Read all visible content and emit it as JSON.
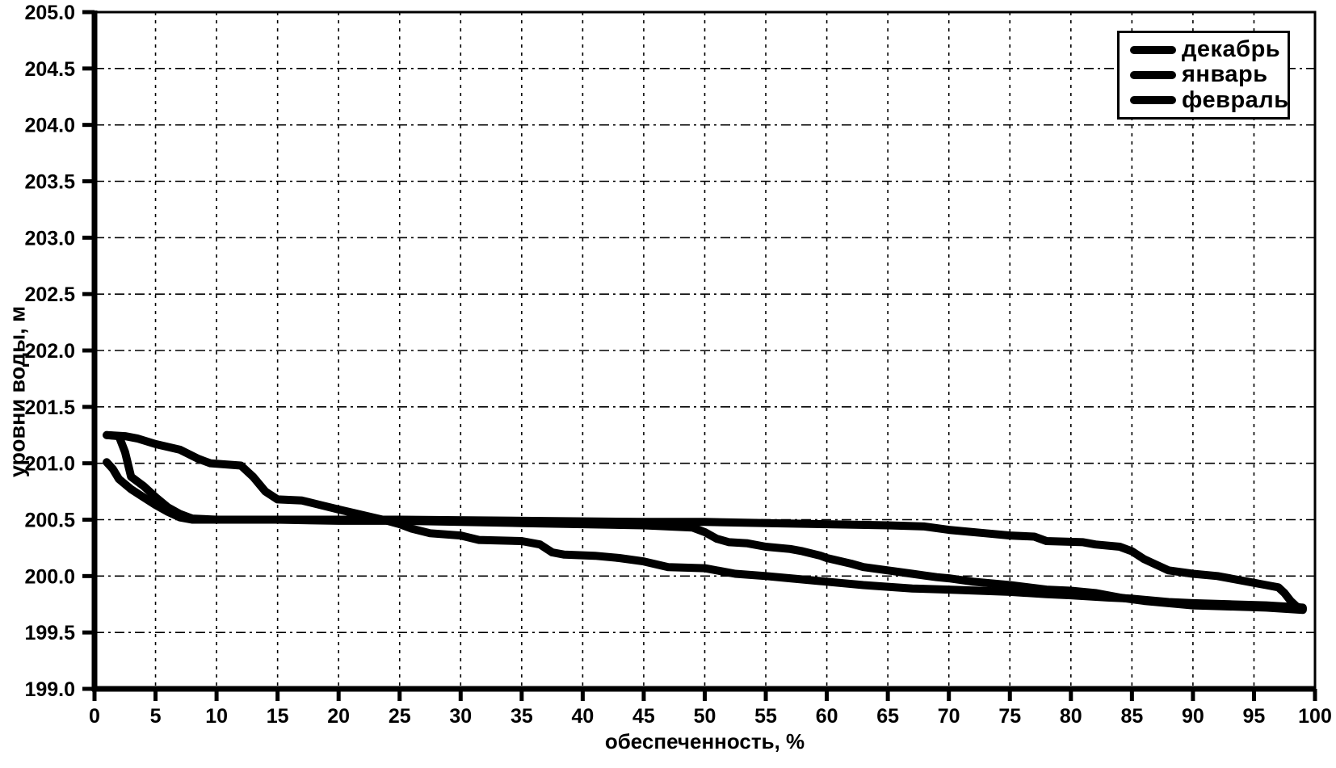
{
  "figure": {
    "background": "#ffffff",
    "ink": "#000000"
  },
  "chart_data": {
    "type": "line",
    "title": "",
    "xlabel": "обеспеченность, %",
    "ylabel": "уровни воды, м",
    "xlim": [
      0,
      100
    ],
    "ylim": [
      199.0,
      205.0
    ],
    "xticks": [
      "0",
      "5",
      "10",
      "15",
      "20",
      "25",
      "30",
      "35",
      "40",
      "45",
      "50",
      "55",
      "60",
      "65",
      "70",
      "75",
      "80",
      "85",
      "90",
      "95",
      "100"
    ],
    "yticks": [
      "199.0",
      "199.5",
      "200.0",
      "200.5",
      "201.0",
      "201.5",
      "202.0",
      "202.5",
      "203.0",
      "203.5",
      "204.0",
      "204.5",
      "205.0"
    ],
    "grid": true,
    "legend_position": "top-right",
    "line_color": "#000000",
    "line_width": 10,
    "series": [
      {
        "name": "декабрь",
        "points": [
          [
            1,
            201.25
          ],
          [
            2.5,
            201.24
          ],
          [
            3.5,
            201.22
          ],
          [
            5,
            201.17
          ],
          [
            7,
            201.12
          ],
          [
            8.5,
            201.04
          ],
          [
            9.5,
            201.0
          ],
          [
            12,
            200.98
          ],
          [
            13,
            200.88
          ],
          [
            14,
            200.75
          ],
          [
            15,
            200.68
          ],
          [
            17,
            200.67
          ],
          [
            18.5,
            200.63
          ],
          [
            20,
            200.59
          ],
          [
            22,
            200.54
          ],
          [
            24,
            200.49
          ],
          [
            25,
            200.46
          ],
          [
            26,
            200.42
          ],
          [
            27.5,
            200.38
          ],
          [
            30,
            200.36
          ],
          [
            31.5,
            200.32
          ],
          [
            35,
            200.31
          ],
          [
            36.5,
            200.28
          ],
          [
            37.5,
            200.21
          ],
          [
            38.5,
            200.19
          ],
          [
            41,
            200.18
          ],
          [
            43,
            200.16
          ],
          [
            45,
            200.13
          ],
          [
            47,
            200.08
          ],
          [
            50,
            200.07
          ],
          [
            52.5,
            200.02
          ],
          [
            55,
            200.0
          ],
          [
            57,
            199.98
          ],
          [
            60,
            199.95
          ],
          [
            63,
            199.92
          ],
          [
            67,
            199.89
          ],
          [
            70,
            199.88
          ],
          [
            75,
            199.86
          ],
          [
            78,
            199.84
          ],
          [
            80,
            199.83
          ],
          [
            83,
            199.81
          ],
          [
            85,
            199.8
          ],
          [
            88,
            199.77
          ],
          [
            90,
            199.76
          ],
          [
            93,
            199.75
          ],
          [
            96,
            199.74
          ],
          [
            99,
            199.72
          ]
        ]
      },
      {
        "name": "январь",
        "points": [
          [
            1,
            201.25
          ],
          [
            2,
            201.24
          ],
          [
            2.5,
            201.1
          ],
          [
            3,
            200.88
          ],
          [
            4,
            200.8
          ],
          [
            5,
            200.7
          ],
          [
            6,
            200.61
          ],
          [
            7,
            200.55
          ],
          [
            8,
            200.51
          ],
          [
            10,
            200.5
          ],
          [
            15,
            200.5
          ],
          [
            20,
            200.49
          ],
          [
            25,
            200.49
          ],
          [
            30,
            200.48
          ],
          [
            35,
            200.47
          ],
          [
            40,
            200.46
          ],
          [
            45,
            200.45
          ],
          [
            49,
            200.43
          ],
          [
            50,
            200.39
          ],
          [
            51,
            200.33
          ],
          [
            52,
            200.3
          ],
          [
            53.5,
            200.29
          ],
          [
            55,
            200.26
          ],
          [
            57,
            200.24
          ],
          [
            58,
            200.22
          ],
          [
            59.5,
            200.18
          ],
          [
            60,
            200.16
          ],
          [
            62,
            200.11
          ],
          [
            63,
            200.08
          ],
          [
            65,
            200.05
          ],
          [
            67,
            200.02
          ],
          [
            69,
            199.99
          ],
          [
            70,
            199.98
          ],
          [
            72,
            199.95
          ],
          [
            75,
            199.92
          ],
          [
            78,
            199.88
          ],
          [
            80,
            199.87
          ],
          [
            82,
            199.85
          ],
          [
            84,
            199.81
          ],
          [
            86,
            199.78
          ],
          [
            88,
            199.76
          ],
          [
            90,
            199.74
          ],
          [
            93,
            199.73
          ],
          [
            96,
            199.72
          ],
          [
            99,
            199.7
          ]
        ]
      },
      {
        "name": "февраль",
        "points": [
          [
            1,
            201.01
          ],
          [
            1.5,
            200.95
          ],
          [
            2,
            200.86
          ],
          [
            3,
            200.77
          ],
          [
            4,
            200.7
          ],
          [
            5,
            200.63
          ],
          [
            6,
            200.57
          ],
          [
            7,
            200.52
          ],
          [
            8,
            200.5
          ],
          [
            15,
            200.5
          ],
          [
            25,
            200.5
          ],
          [
            35,
            200.49
          ],
          [
            45,
            200.48
          ],
          [
            50,
            200.48
          ],
          [
            55,
            200.47
          ],
          [
            60,
            200.46
          ],
          [
            65,
            200.45
          ],
          [
            68,
            200.44
          ],
          [
            70,
            200.41
          ],
          [
            73,
            200.38
          ],
          [
            75,
            200.36
          ],
          [
            77,
            200.35
          ],
          [
            78,
            200.31
          ],
          [
            81,
            200.3
          ],
          [
            82,
            200.28
          ],
          [
            84,
            200.26
          ],
          [
            85,
            200.22
          ],
          [
            86,
            200.15
          ],
          [
            87,
            200.1
          ],
          [
            88,
            200.05
          ],
          [
            90,
            200.02
          ],
          [
            92,
            200.0
          ],
          [
            93,
            199.98
          ],
          [
            95,
            199.94
          ],
          [
            96,
            199.92
          ],
          [
            97,
            199.9
          ],
          [
            97.5,
            199.85
          ],
          [
            98,
            199.78
          ],
          [
            98.5,
            199.73
          ],
          [
            99,
            199.71
          ]
        ]
      }
    ]
  }
}
